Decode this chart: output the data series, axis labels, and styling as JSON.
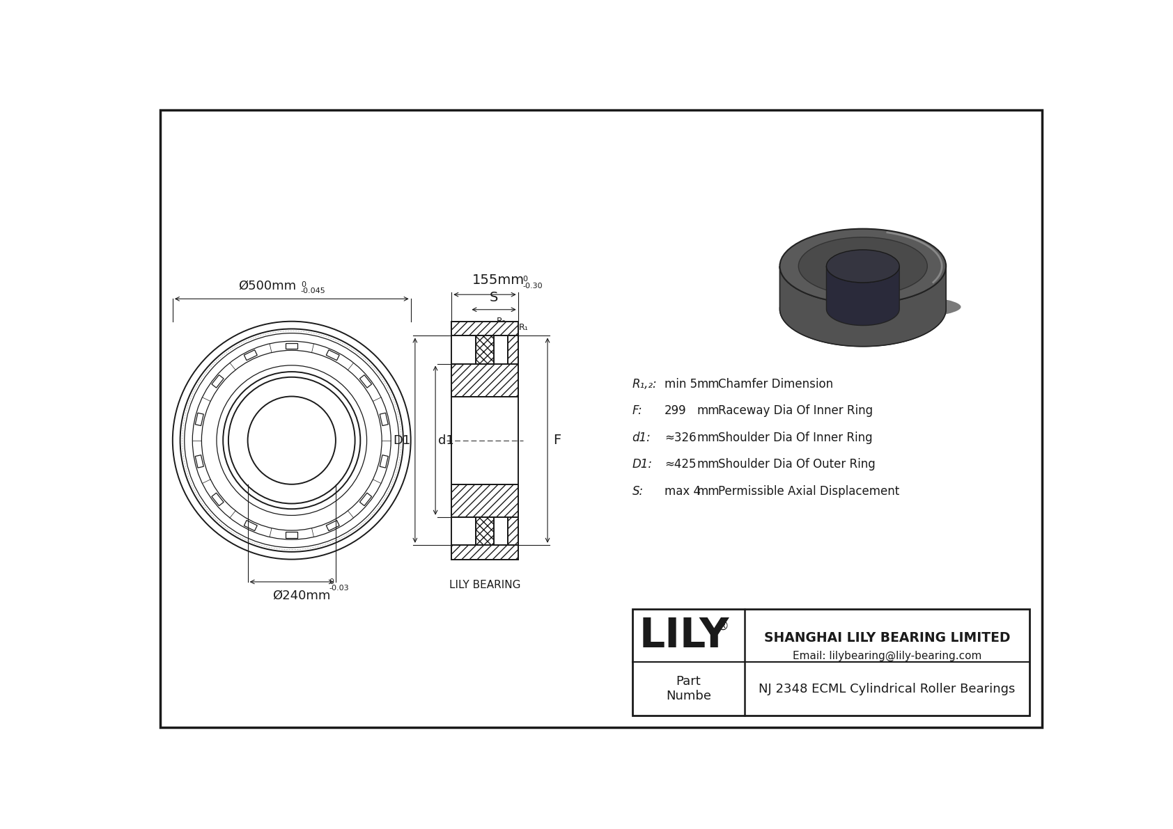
{
  "background_color": "#ffffff",
  "drawing_color": "#1a1a1a",
  "outer_diameter_label": "Ø500mm",
  "outer_tolerance_top": "0",
  "outer_tolerance_bot": "-0.045",
  "inner_diameter_label": "Ø240mm",
  "inner_tolerance_top": "0",
  "inner_tolerance_bot": "-0.03",
  "width_label": "155mm",
  "width_tolerance_top": "0",
  "width_tolerance_bot": "-0.30",
  "specs": [
    {
      "symbol": "R₁,₂:",
      "value": "min 5",
      "unit": "mm",
      "desc": "Chamfer Dimension"
    },
    {
      "symbol": "F:",
      "value": "299",
      "unit": "mm",
      "desc": "Raceway Dia Of Inner Ring"
    },
    {
      "symbol": "d1:",
      "value": "≈326",
      "unit": "mm",
      "desc": "Shoulder Dia Of Inner Ring"
    },
    {
      "symbol": "D1:",
      "value": "≈425",
      "unit": "mm",
      "desc": "Shoulder Dia Of Outer Ring"
    },
    {
      "symbol": "S:",
      "value": "max 4",
      "unit": "mm",
      "desc": "Permissible Axial Displacement"
    }
  ],
  "company": "SHANGHAI LILY BEARING LIMITED",
  "email": "Email: lilybearing@lily-bearing.com",
  "part_label": "Part\nNumbe",
  "part_number": "NJ 2348 ECML Cylindrical Roller Bearings",
  "lily_label": "LILY",
  "lily_bearing_label": "LILY BEARING"
}
